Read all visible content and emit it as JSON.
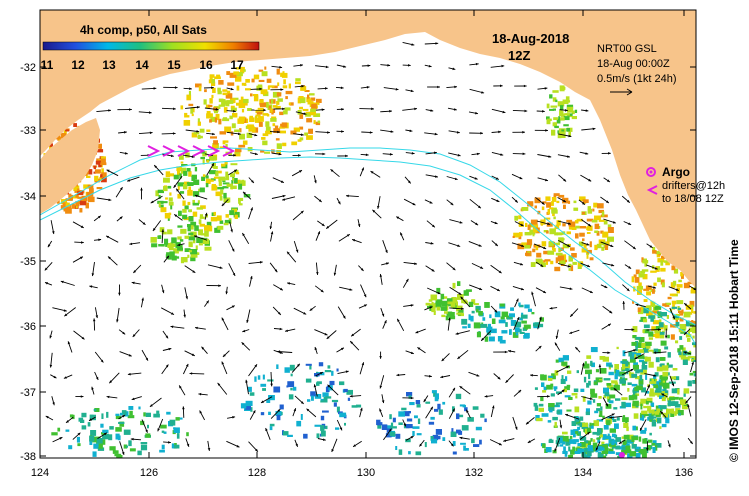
{
  "colorbar": {
    "title": "4h comp, p50, All Sats",
    "ticks": [
      "11",
      "12",
      "13",
      "14",
      "15",
      "16",
      "17"
    ]
  },
  "header": {
    "date": "18-Aug-2018",
    "time": "12Z"
  },
  "info": {
    "line1": "NRT00 GSL",
    "line2": "18-Aug 00:00Z",
    "scale": "0.5m/s (1kt 24h)"
  },
  "legend": {
    "argo": "Argo",
    "drifters_line1": "drifters@12h",
    "drifters_line2": "to 18/08 12Z"
  },
  "axes": {
    "y_ticks": [
      "-32",
      "-33",
      "-34",
      "-35",
      "-36",
      "-37",
      "-38"
    ],
    "x_ticks": [
      "124",
      "126",
      "128",
      "130",
      "132",
      "134",
      "136"
    ]
  },
  "credit": "© IMOS 12-Sep-2018 15:11 Hobart Time",
  "colors": {
    "land": "#f7c48a",
    "ocean": "#ffffff",
    "contour": "#36d8e8",
    "argo": "#e020e0",
    "drifter": "#e020e0"
  }
}
